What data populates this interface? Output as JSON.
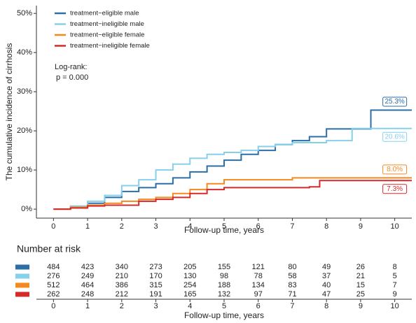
{
  "chart_data": {
    "type": "line",
    "y_label": "The cumulative incidence of cirrhosis",
    "x_label": "Follow-up time, years",
    "annotation_title": "Log-rank:",
    "annotation_text": "p = 0.000",
    "xlim": [
      -0.5,
      10.5
    ],
    "xticks": [
      0,
      1,
      2,
      3,
      4,
      5,
      6,
      7,
      8,
      9,
      10
    ],
    "ylim": [
      -2.3,
      52
    ],
    "yticks": [
      {
        "value": 0,
        "label": "0%"
      },
      {
        "value": 10,
        "label": "10%"
      },
      {
        "value": 20,
        "label": "20%"
      },
      {
        "value": 30,
        "label": "30%"
      },
      {
        "value": 40,
        "label": "40%"
      },
      {
        "value": 50,
        "label": "50%"
      }
    ],
    "legend": "upper left",
    "step": true,
    "series": [
      {
        "name": "treatment−eligible male",
        "color": "#2b6ea8",
        "x": [
          0,
          0.5,
          1,
          1.5,
          2,
          2.5,
          3,
          3.5,
          4,
          4.5,
          5,
          5.5,
          6,
          6.5,
          7,
          7.5,
          8,
          9,
          9.3,
          10.5
        ],
        "values": [
          0,
          0.5,
          1.5,
          3,
          4.5,
          5.5,
          6.5,
          8,
          9.5,
          11,
          12.5,
          14,
          15,
          16.5,
          17.5,
          18.5,
          20.5,
          20.5,
          25.3,
          25.3
        ],
        "value_labels": [
          null,
          null,
          null,
          null,
          null,
          null,
          null,
          null,
          null,
          null,
          null,
          null,
          null,
          null,
          null,
          null,
          null,
          null,
          null,
          "25.3%"
        ]
      },
      {
        "name": "treatment−ineligible male",
        "color": "#86d0ec",
        "x": [
          0,
          0.5,
          1,
          1.5,
          2,
          2.5,
          3,
          3.5,
          4,
          4.5,
          5,
          5.5,
          6,
          6.5,
          7,
          8,
          8.75,
          10.5
        ],
        "values": [
          0,
          0.8,
          2,
          3.5,
          6,
          7.5,
          10,
          11.5,
          13,
          14,
          14.5,
          15,
          16,
          16.5,
          17,
          17.5,
          20.6,
          20.6
        ],
        "value_labels": [
          null,
          null,
          null,
          null,
          null,
          null,
          null,
          null,
          null,
          null,
          null,
          null,
          null,
          null,
          null,
          null,
          null,
          "20.6%"
        ]
      },
      {
        "name": "treatment−eligible female",
        "color": "#f5891f",
        "x": [
          0,
          0.5,
          1,
          1.5,
          2,
          2.5,
          3,
          3.5,
          4,
          4.5,
          5,
          6,
          7,
          8,
          10.5
        ],
        "values": [
          0,
          0.5,
          1,
          1.5,
          2,
          2.5,
          3,
          4,
          5,
          6.5,
          7.5,
          7.5,
          8,
          8,
          8.0
        ],
        "value_labels": [
          null,
          null,
          null,
          null,
          null,
          null,
          null,
          null,
          null,
          null,
          null,
          null,
          null,
          null,
          "8.0%"
        ]
      },
      {
        "name": "treatment−ineligible female",
        "color": "#d42a2a",
        "x": [
          0,
          0.5,
          1,
          1.5,
          2,
          2.5,
          3,
          3.5,
          4,
          4.5,
          5,
          6,
          7.5,
          7.8,
          10.5
        ],
        "values": [
          0,
          0.3,
          0.8,
          1,
          1,
          2,
          2.5,
          3,
          4,
          5,
          5.5,
          5.5,
          5.7,
          7.3,
          7.3
        ],
        "value_labels": [
          null,
          null,
          null,
          null,
          null,
          null,
          null,
          null,
          null,
          null,
          null,
          null,
          null,
          null,
          "7.3%"
        ]
      }
    ],
    "risk_table": {
      "title": "Number at risk",
      "x_label": "Follow-up time, years",
      "rows": [
        [
          484,
          423,
          340,
          273,
          205,
          155,
          121,
          80,
          49,
          26,
          8
        ],
        [
          276,
          249,
          210,
          170,
          130,
          98,
          78,
          58,
          37,
          21,
          5
        ],
        [
          512,
          464,
          386,
          315,
          254,
          188,
          134,
          83,
          40,
          15,
          7
        ],
        [
          262,
          248,
          212,
          191,
          165,
          132,
          97,
          71,
          47,
          25,
          9
        ]
      ]
    }
  }
}
